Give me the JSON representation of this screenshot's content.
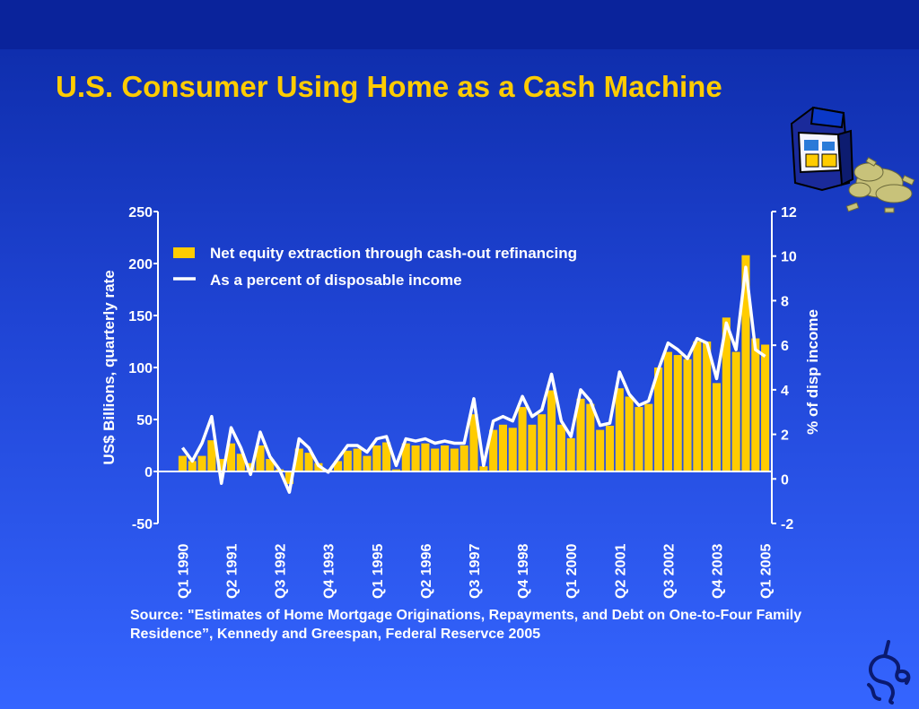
{
  "slide": {
    "title": "U.S. Consumer Using Home as a Cash Machine",
    "source": "Source: \"Estimates of Home Mortgage Originations, Repayments, and Debt on One-to-Four Family Residence”, Kennedy and Greespan, Federal Reservce 2005"
  },
  "decorations": {
    "atm_icon": "atm-machine-with-cash-icon",
    "logo": "unicorn-logo-icon"
  },
  "colors": {
    "bar": "#ffcc00",
    "line": "#ffffff",
    "title": "#ffcc00"
  },
  "chart_data": {
    "type": "bar",
    "title": "",
    "ylabel": "US$ Billions, quarterly rate",
    "y2label": "% of disp income",
    "ylim": [
      -50,
      250
    ],
    "y2lim": [
      -2,
      12
    ],
    "yticks": [
      -50,
      0,
      50,
      100,
      150,
      200,
      250
    ],
    "y2ticks": [
      -2,
      0,
      2,
      4,
      6,
      8,
      10,
      12
    ],
    "grid": false,
    "legend_position": "top-left",
    "x_labels": [
      "Q1 1990",
      "Q2 1991",
      "Q3 1992",
      "Q4 1993",
      "Q1 1995",
      "Q2 1996",
      "Q3 1997",
      "Q4 1998",
      "Q1 2000",
      "Q2 2001",
      "Q3 2002",
      "Q4 2003",
      "Q1 2005"
    ],
    "categories": [
      "Q1 1990",
      "Q2 1990",
      "Q3 1990",
      "Q4 1990",
      "Q1 1991",
      "Q2 1991",
      "Q3 1991",
      "Q4 1991",
      "Q1 1992",
      "Q2 1992",
      "Q3 1992",
      "Q4 1992",
      "Q1 1993",
      "Q2 1993",
      "Q3 1993",
      "Q4 1993",
      "Q1 1994",
      "Q2 1994",
      "Q3 1994",
      "Q4 1994",
      "Q1 1995",
      "Q2 1995",
      "Q3 1995",
      "Q4 1995",
      "Q1 1996",
      "Q2 1996",
      "Q3 1996",
      "Q4 1996",
      "Q1 1997",
      "Q2 1997",
      "Q3 1997",
      "Q4 1997",
      "Q1 1998",
      "Q2 1998",
      "Q3 1998",
      "Q4 1998",
      "Q1 1999",
      "Q2 1999",
      "Q3 1999",
      "Q4 1999",
      "Q1 2000",
      "Q2 2000",
      "Q3 2000",
      "Q4 2000",
      "Q1 2001",
      "Q2 2001",
      "Q3 2001",
      "Q4 2001",
      "Q1 2002",
      "Q2 2002",
      "Q3 2002",
      "Q4 2002",
      "Q1 2003",
      "Q2 2003",
      "Q3 2003",
      "Q4 2003",
      "Q1 2004",
      "Q2 2004",
      "Q3 2004",
      "Q4 2004",
      "Q1 2005"
    ],
    "series": [
      {
        "name": "Net equity extraction through cash-out refinancing",
        "type": "bar",
        "axis": "left",
        "values": [
          15,
          10,
          15,
          30,
          12,
          27,
          17,
          8,
          25,
          12,
          2,
          -12,
          22,
          18,
          8,
          2,
          10,
          20,
          22,
          15,
          25,
          28,
          2,
          27,
          25,
          27,
          22,
          25,
          22,
          25,
          55,
          5,
          40,
          45,
          42,
          62,
          45,
          55,
          78,
          45,
          32,
          70,
          65,
          40,
          44,
          80,
          72,
          62,
          65,
          100,
          115,
          112,
          108,
          125,
          125,
          85,
          148,
          115,
          208,
          128,
          122
        ]
      },
      {
        "name": "As a percent of disposable income",
        "type": "line",
        "axis": "right",
        "values": [
          1.4,
          0.8,
          1.6,
          2.8,
          -0.2,
          2.3,
          1.4,
          0.2,
          2.1,
          1.0,
          0.4,
          -0.6,
          1.8,
          1.4,
          0.6,
          0.3,
          0.9,
          1.5,
          1.5,
          1.2,
          1.8,
          1.9,
          0.6,
          1.8,
          1.7,
          1.8,
          1.6,
          1.7,
          1.6,
          1.6,
          3.6,
          0.6,
          2.6,
          2.8,
          2.6,
          3.7,
          2.8,
          3.1,
          4.7,
          2.6,
          1.9,
          4.0,
          3.5,
          2.4,
          2.5,
          4.8,
          3.8,
          3.3,
          3.5,
          4.9,
          6.1,
          5.8,
          5.4,
          6.3,
          6.1,
          4.5,
          7.0,
          5.8,
          9.5,
          5.8,
          5.5
        ]
      }
    ]
  }
}
